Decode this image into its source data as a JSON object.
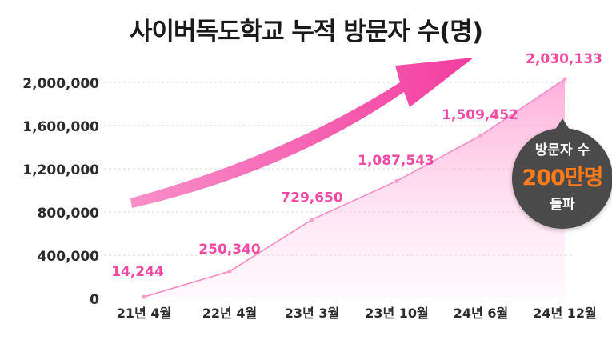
{
  "title": "사이버독도학교 누적 방문자 수(명)",
  "badge": {
    "line1": "방문자 수",
    "line2": "200만명",
    "line3": "돌파"
  },
  "colors": {
    "line": "#f58cc4",
    "point": "#ff9fd0",
    "area_top": "#ff9fd4",
    "label": "#f04aa3",
    "axis_text": "#2b2b2b",
    "grid": "#d7d7d7",
    "arrow": "#f2339a",
    "badge_bg": "#4a4a4a",
    "badge_highlight": "#ff7a1a"
  },
  "chart_data": {
    "type": "area",
    "title": "사이버독도학교 누적 방문자 수(명)",
    "categories": [
      "21년 4월",
      "22년 4월",
      "23년 3월",
      "23년 10월",
      "24년 6월",
      "24년 12월"
    ],
    "values": [
      14244,
      250340,
      729650,
      1087543,
      1509452,
      2030133
    ],
    "data_labels": [
      "14,244",
      "250,340",
      "729,650",
      "1,087,543",
      "1,509,452",
      "2,030,133"
    ],
    "y_ticks": [
      0,
      400000,
      800000,
      1200000,
      1600000,
      2000000
    ],
    "y_tick_labels": [
      "0",
      "400,000",
      "800,000",
      "1,200,000",
      "1,600,000",
      "2,000,000"
    ],
    "ylim": [
      0,
      2000000
    ],
    "grid": true,
    "legend": "none"
  }
}
